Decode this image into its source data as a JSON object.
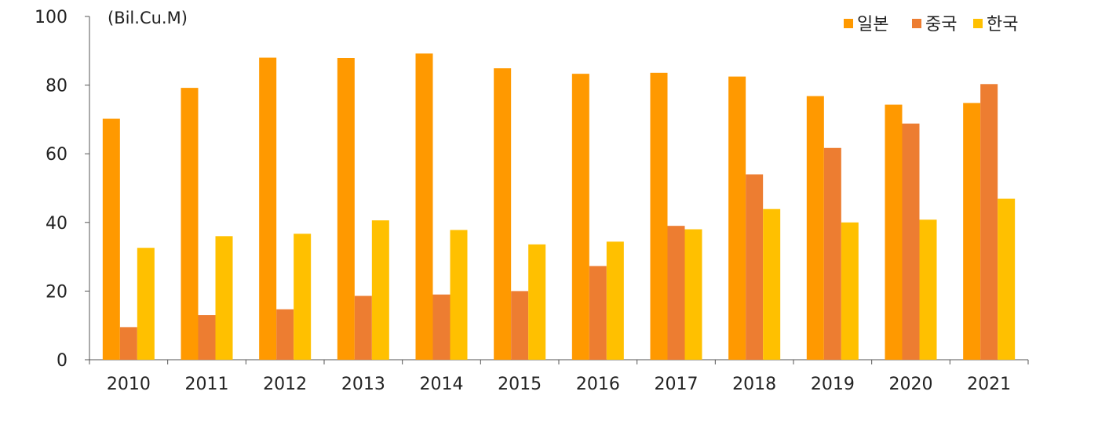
{
  "chart_data": {
    "type": "bar",
    "unit_label": "(Bil.Cu.M)",
    "categories": [
      "2010",
      "2011",
      "2012",
      "2013",
      "2014",
      "2015",
      "2016",
      "2017",
      "2018",
      "2019",
      "2020",
      "2021"
    ],
    "series": [
      {
        "name": "일본",
        "color": "#FF9900",
        "values": [
          70.2,
          79.2,
          88.0,
          87.9,
          89.2,
          84.9,
          83.3,
          83.6,
          82.5,
          76.8,
          74.3,
          74.8
        ]
      },
      {
        "name": "중국",
        "color": "#ED7D31",
        "values": [
          9.5,
          13.0,
          14.7,
          18.6,
          19.0,
          20.0,
          27.3,
          39.0,
          54.0,
          61.7,
          68.8,
          80.3
        ]
      },
      {
        "name": "한국",
        "color": "#FFC000",
        "values": [
          32.6,
          36.0,
          36.7,
          40.6,
          37.8,
          33.6,
          34.4,
          38.0,
          43.9,
          40.0,
          40.8,
          46.9
        ]
      }
    ],
    "ylim": [
      0,
      100
    ],
    "yticks": [
      0,
      20,
      40,
      60,
      80,
      100
    ],
    "grid": false,
    "legend_position": "top-right"
  }
}
